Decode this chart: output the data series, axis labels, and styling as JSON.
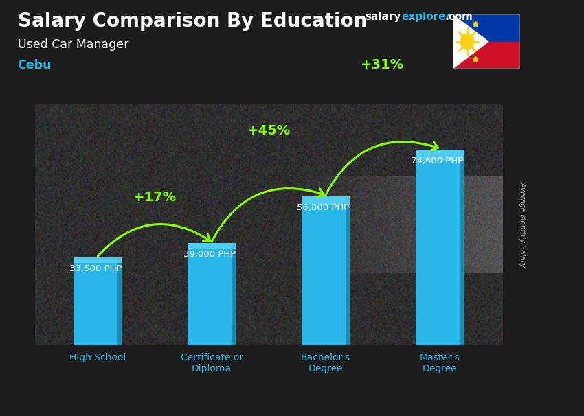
{
  "title": "Salary Comparison By Education",
  "subtitle": "Used Car Manager",
  "location": "Cebu",
  "ylabel": "Average Monthly Salary",
  "categories": [
    "High School",
    "Certificate or\nDiploma",
    "Bachelor's\nDegree",
    "Master's\nDegree"
  ],
  "values": [
    33500,
    39000,
    56800,
    74600
  ],
  "value_labels": [
    "33,500 PHP",
    "39,000 PHP",
    "56,800 PHP",
    "74,600 PHP"
  ],
  "pct_labels": [
    "+17%",
    "+45%",
    "+31%"
  ],
  "bar_color": "#29b6e8",
  "bar_color_light": "#5dd4f5",
  "pct_color": "#88ff00",
  "title_color": "#ffffff",
  "subtitle_color": "#ffffff",
  "location_color": "#29b6e8",
  "value_label_color": "#ffffff",
  "bg_dark": "#1c1c1c",
  "brand_salary_color": "#ffffff",
  "brand_explorer_color": "#29b6e8",
  "brand_com_color": "#ffffff",
  "right_label_color": "#aaaaaa",
  "axis_label_color": "#29b6e8"
}
